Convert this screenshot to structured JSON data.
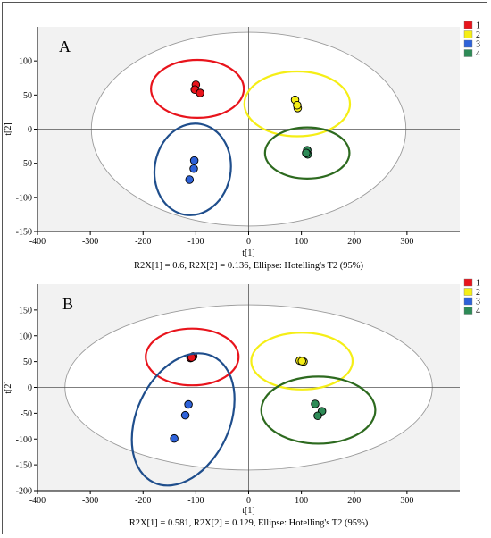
{
  "chart_data": [
    {
      "type": "scatter",
      "panel_label": "A",
      "xlabel": "t[1]",
      "ylabel": "t[2]",
      "xlim": [
        -400,
        400
      ],
      "ylim": [
        -150,
        150
      ],
      "xticks": [
        -400,
        -300,
        -200,
        -100,
        0,
        100,
        200,
        300
      ],
      "yticks": [
        -150,
        -100,
        -50,
        0,
        50,
        100
      ],
      "footer": "R2X[1] = 0.6, R2X[2] = 0.136, Ellipse: Hotelling's T2 (95%)",
      "hotelling_ellipse": {
        "cx": 0,
        "cy": 0,
        "rx": 298,
        "ry": 142
      },
      "legend": [
        {
          "name": "1",
          "color": "#e8141c"
        },
        {
          "name": "2",
          "color": "#f5ee16"
        },
        {
          "name": "3",
          "color": "#2e62d9"
        },
        {
          "name": "4",
          "color": "#2e8b57"
        }
      ],
      "series": [
        {
          "name": "1",
          "color": "#e8141c",
          "ring": "#e8141c",
          "points": [
            {
              "x": -100,
              "y": 65
            },
            {
              "x": -102,
              "y": 58
            },
            {
              "x": -92,
              "y": 53
            }
          ],
          "group_ellipse": {
            "cx": -97,
            "cy": 59,
            "rx": 22,
            "ry": 17,
            "angle": 0
          }
        },
        {
          "name": "2",
          "color": "#f5ee16",
          "ring": "#f5ee16",
          "points": [
            {
              "x": 88,
              "y": 43
            },
            {
              "x": 93,
              "y": 31
            },
            {
              "x": 92,
              "y": 35
            }
          ],
          "group_ellipse": {
            "cx": 92,
            "cy": 37,
            "rx": 25,
            "ry": 19,
            "angle": 0
          }
        },
        {
          "name": "3",
          "color": "#2e62d9",
          "ring": "#1f4e8c",
          "points": [
            {
              "x": -103,
              "y": -46
            },
            {
              "x": -104,
              "y": -58
            },
            {
              "x": -112,
              "y": -74
            }
          ],
          "group_ellipse": {
            "cx": -106,
            "cy": -59,
            "rx": 18,
            "ry": 27,
            "angle": 10
          }
        },
        {
          "name": "4",
          "color": "#2e8b57",
          "ring": "#2d6a1f",
          "points": [
            {
              "x": 111,
              "y": -31
            },
            {
              "x": 112,
              "y": -37
            },
            {
              "x": 109,
              "y": -35
            }
          ],
          "group_ellipse": {
            "cx": 111,
            "cy": -35,
            "rx": 20,
            "ry": 15,
            "angle": 0
          }
        }
      ]
    },
    {
      "type": "scatter",
      "panel_label": "B",
      "xlabel": "t[1]",
      "ylabel": "t[2]",
      "xlim": [
        -400,
        400
      ],
      "ylim": [
        -200,
        200
      ],
      "xticks": [
        -400,
        -300,
        -200,
        -100,
        0,
        100,
        200,
        300
      ],
      "yticks": [
        -200,
        -150,
        -100,
        -50,
        0,
        50,
        100,
        150
      ],
      "footer": "R2X[1] = 0.581, R2X[2] = 0.129, Ellipse: Hotelling's T2 (95%)",
      "hotelling_ellipse": {
        "cx": 0,
        "cy": 0,
        "rx": 348,
        "ry": 160
      },
      "legend": [
        {
          "name": "1",
          "color": "#e8141c"
        },
        {
          "name": "2",
          "color": "#f5ee16"
        },
        {
          "name": "3",
          "color": "#2e62d9"
        },
        {
          "name": "4",
          "color": "#2e8b57"
        }
      ],
      "series": [
        {
          "name": "1",
          "color": "#e8141c",
          "ring": "#e8141c",
          "points": [
            {
              "x": -110,
              "y": 57
            },
            {
              "x": -105,
              "y": 60
            },
            {
              "x": -108,
              "y": 58
            }
          ],
          "group_ellipse": {
            "cx": -107,
            "cy": 59,
            "rx": 22,
            "ry": 22,
            "angle": 0
          }
        },
        {
          "name": "2",
          "color": "#f5ee16",
          "ring": "#f5ee16",
          "points": [
            {
              "x": 97,
              "y": 52
            },
            {
              "x": 104,
              "y": 50
            },
            {
              "x": 101,
              "y": 51
            }
          ],
          "group_ellipse": {
            "cx": 101,
            "cy": 51,
            "rx": 24,
            "ry": 22,
            "angle": 0
          }
        },
        {
          "name": "3",
          "color": "#2e62d9",
          "ring": "#1f4e8c",
          "points": [
            {
              "x": -114,
              "y": -33
            },
            {
              "x": -120,
              "y": -54
            },
            {
              "x": -141,
              "y": -99
            }
          ],
          "group_ellipse": {
            "cx": -124,
            "cy": -62,
            "rx": 22,
            "ry": 54,
            "angle": 25
          }
        },
        {
          "name": "4",
          "color": "#2e8b57",
          "ring": "#2d6a1f",
          "points": [
            {
              "x": 126,
              "y": -32
            },
            {
              "x": 139,
              "y": -46
            },
            {
              "x": 131,
              "y": -55
            }
          ],
          "group_ellipse": {
            "cx": 132,
            "cy": -44,
            "rx": 27,
            "ry": 26,
            "angle": 0
          }
        }
      ]
    }
  ]
}
